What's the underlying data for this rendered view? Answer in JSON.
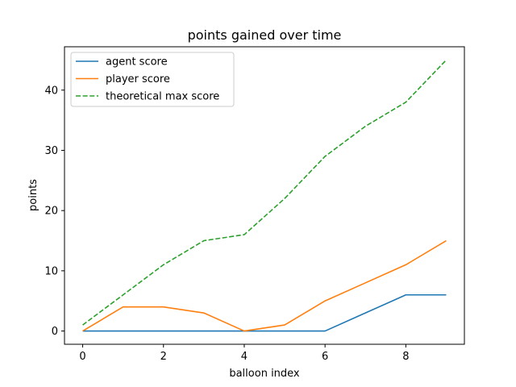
{
  "chart_data": {
    "type": "line",
    "title": "points gained over time",
    "xlabel": "balloon index",
    "ylabel": "points",
    "xlim": [
      -0.45,
      9.45
    ],
    "ylim": [
      -2.2,
      47.2
    ],
    "xticks": [
      0,
      2,
      4,
      6,
      8
    ],
    "yticks": [
      0,
      10,
      20,
      30,
      40
    ],
    "grid": false,
    "legend_position": "top-left",
    "x": [
      0,
      1,
      2,
      3,
      4,
      5,
      6,
      7,
      8,
      9
    ],
    "series": [
      {
        "name": "agent score",
        "color": "#1f77b4",
        "dashed": false,
        "values": [
          0,
          0,
          0,
          0,
          0,
          0,
          0,
          3,
          6,
          6
        ]
      },
      {
        "name": "player score",
        "color": "#ff7f0e",
        "dashed": false,
        "values": [
          0,
          4,
          4,
          3,
          0,
          1,
          5,
          8,
          11,
          15
        ]
      },
      {
        "name": "theoretical max score",
        "color": "#2ca02c",
        "dashed": true,
        "values": [
          1,
          6,
          11,
          15,
          16,
          22,
          29,
          34,
          38,
          45
        ]
      }
    ]
  }
}
